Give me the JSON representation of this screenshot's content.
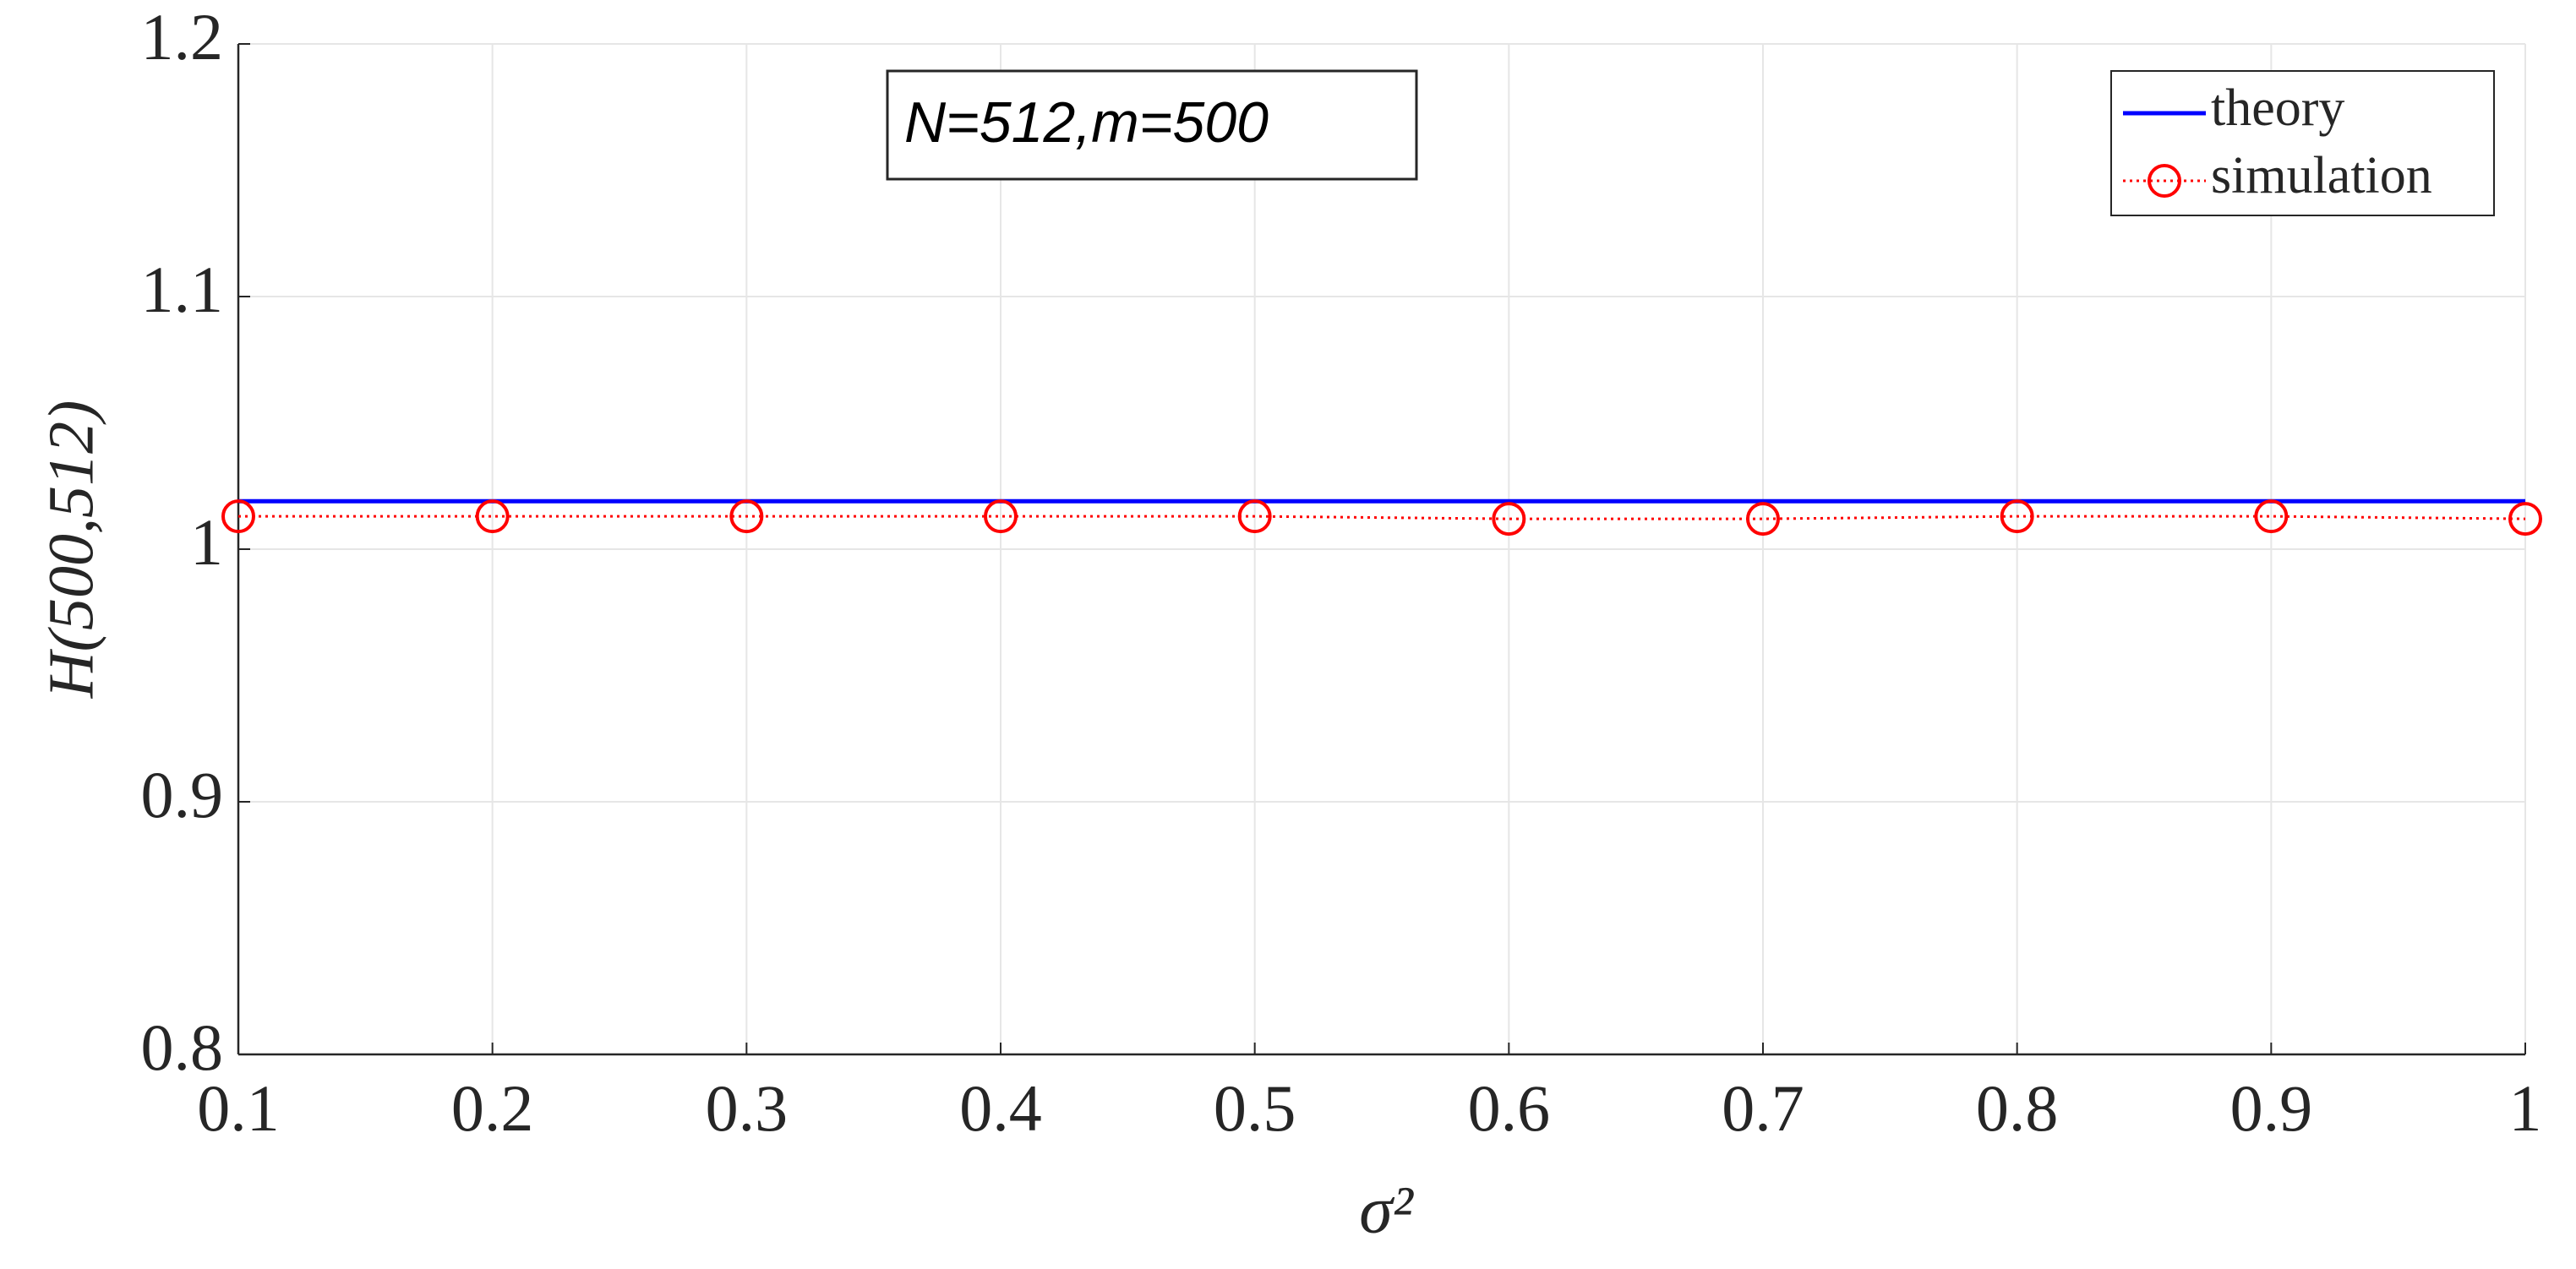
{
  "chart_data": {
    "type": "line",
    "xlabel": "σ²",
    "ylabel": "H(500,512)",
    "annotation": "N=512,m=500",
    "x": [
      0.1,
      0.2,
      0.3,
      0.4,
      0.5,
      0.6,
      0.7,
      0.8,
      0.9,
      1
    ],
    "series": [
      {
        "name": "theory",
        "color": "#0000ff",
        "values": [
          1.019,
          1.019,
          1.019,
          1.019,
          1.019,
          1.019,
          1.019,
          1.019,
          1.019,
          1.019
        ]
      },
      {
        "name": "simulation",
        "color": "#ff0000",
        "values": [
          1.013,
          1.013,
          1.013,
          1.013,
          1.013,
          1.012,
          1.012,
          1.013,
          1.013,
          1.012
        ]
      }
    ],
    "xlim": [
      0.1,
      1
    ],
    "xticks": [
      0.1,
      0.2,
      0.3,
      0.4,
      0.5,
      0.6,
      0.7,
      0.8,
      0.9,
      1
    ],
    "ylim": [
      0.8,
      1.2
    ],
    "yticks": [
      0.8,
      0.9,
      1,
      1.1,
      1.2
    ],
    "grid": true,
    "legend": "upper right"
  }
}
